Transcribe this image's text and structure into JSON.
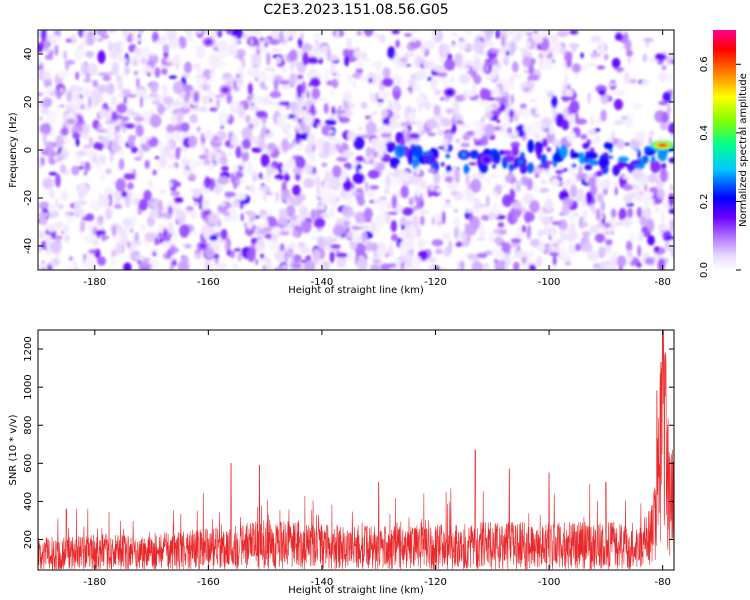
{
  "title": "C2E3.2023.151.08.56.G05",
  "chart_data": [
    {
      "type": "heatmap",
      "xlabel": "Height of straight line (km)",
      "ylabel": "Frequency (Hz)",
      "xlim": [
        -190,
        -78
      ],
      "ylim": [
        -50,
        50
      ],
      "xticks": [
        -180,
        -160,
        -140,
        -120,
        -100,
        -80
      ],
      "yticks": [
        -40,
        -20,
        0,
        20,
        40
      ],
      "colorbar": {
        "label": "Normalized spectral amplitude",
        "range": [
          0,
          0.7
        ],
        "ticks": [
          0.0,
          0.2,
          0.4,
          0.6
        ],
        "tick_labels": [
          "0.0",
          "0.2",
          "0.4",
          "0.6"
        ],
        "colors": [
          "#ffffff",
          "#d8b8ff",
          "#8a2be2",
          "#5a00ff",
          "#0000ff",
          "#00d0ff",
          "#00ff80",
          "#80ff00",
          "#ffff00",
          "#ff8000",
          "#ff0000",
          "#ff0080"
        ]
      },
      "features": [
        {
          "description_x": [
            -128,
            -78
          ],
          "frequency": -3,
          "amplitude": 0.25
        },
        {
          "x": -80,
          "y": 2,
          "amplitude": 0.65
        },
        {
          "x": -115,
          "y": -2,
          "amplitude": 0.3
        },
        {
          "x": -105,
          "y": -5,
          "amplitude": 0.28
        },
        {
          "x": -121,
          "y": -4,
          "amplitude": 0.25
        },
        {
          "x": -111,
          "y": -4,
          "amplitude": 0.22
        },
        {
          "x": -117.5,
          "y": 24,
          "amplitude": 0.2
        },
        {
          "x": -160,
          "y": 45,
          "amplitude": 0.15
        },
        {
          "x": -157,
          "y": 25,
          "amplitude": 0.15
        },
        {
          "x": -161,
          "y": -40,
          "amplitude": 0.15
        }
      ],
      "background_amplitude": 0.08
    },
    {
      "type": "line",
      "xlabel": "Height of straight line (km)",
      "ylabel": "SNR (10 * v/v)",
      "xlim": [
        -190,
        -78
      ],
      "ylim": [
        40,
        1300
      ],
      "xticks": [
        -180,
        -160,
        -140,
        -120,
        -100,
        -80
      ],
      "yticks": [
        200,
        400,
        600,
        800,
        1000,
        1200
      ],
      "series": [
        {
          "color": "#e8282a",
          "baseline": [
            [
              -190,
              120
            ],
            [
              -182,
              130
            ],
            [
              -170,
              130
            ],
            [
              -160,
              150
            ],
            [
              -150,
              175
            ],
            [
              -140,
              160
            ],
            [
              -130,
              155
            ],
            [
              -120,
              160
            ],
            [
              -110,
              170
            ],
            [
              -100,
              165
            ],
            [
              -90,
              170
            ],
            [
              -84,
              150
            ],
            [
              -82,
              220
            ],
            [
              -81,
              350
            ],
            [
              -80.5,
              600
            ],
            [
              -80,
              900
            ],
            [
              -79.5,
              700
            ],
            [
              -79,
              450
            ],
            [
              -78,
              380
            ]
          ],
          "peaks": [
            [
              -80,
              1290
            ],
            [
              -80.3,
              1130
            ],
            [
              -81,
              980
            ],
            [
              -113,
              670
            ],
            [
              -156,
              600
            ],
            [
              -151,
              590
            ],
            [
              -107,
              570
            ],
            [
              -100,
              550
            ],
            [
              -90,
              500
            ],
            [
              -130,
              500
            ],
            [
              -185,
              360
            ]
          ]
        }
      ]
    }
  ]
}
